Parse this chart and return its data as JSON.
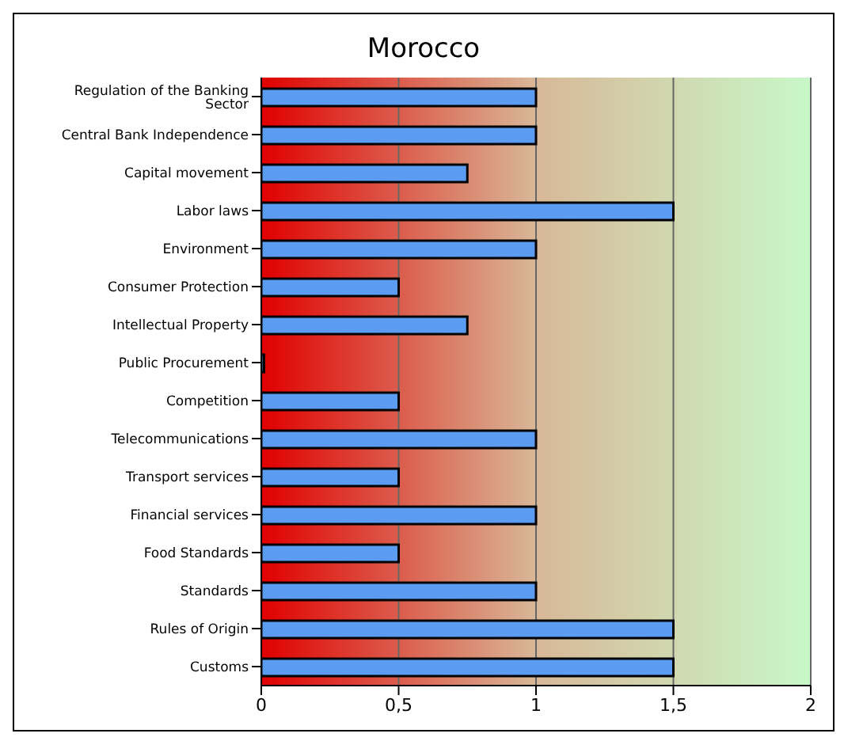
{
  "chart_data": {
    "type": "bar",
    "orientation": "horizontal",
    "title": "Morocco",
    "categories": [
      "Regulation of the Banking Sector",
      "Central Bank Independence",
      "Capital movement",
      "Labor laws",
      "Environment",
      "Consumer Protection",
      "Intellectual Property",
      "Public Procurement",
      "Competition",
      "Telecommunications",
      "Transport services",
      "Financial services",
      "Food Standards",
      "Standards",
      "Rules of Origin",
      "Customs"
    ],
    "values": [
      1,
      1,
      0.75,
      1.5,
      1,
      0.5,
      0.75,
      0.01,
      0.5,
      1,
      0.5,
      1,
      0.5,
      1,
      1.5,
      1.5
    ],
    "color": "#5b9cf0",
    "xlim": [
      0,
      2
    ],
    "xticks": [
      0,
      {
        "value": 0.5,
        "label": "0,5"
      },
      1,
      {
        "value": 1.5,
        "label": "1,5"
      },
      2
    ],
    "grid": "x"
  }
}
